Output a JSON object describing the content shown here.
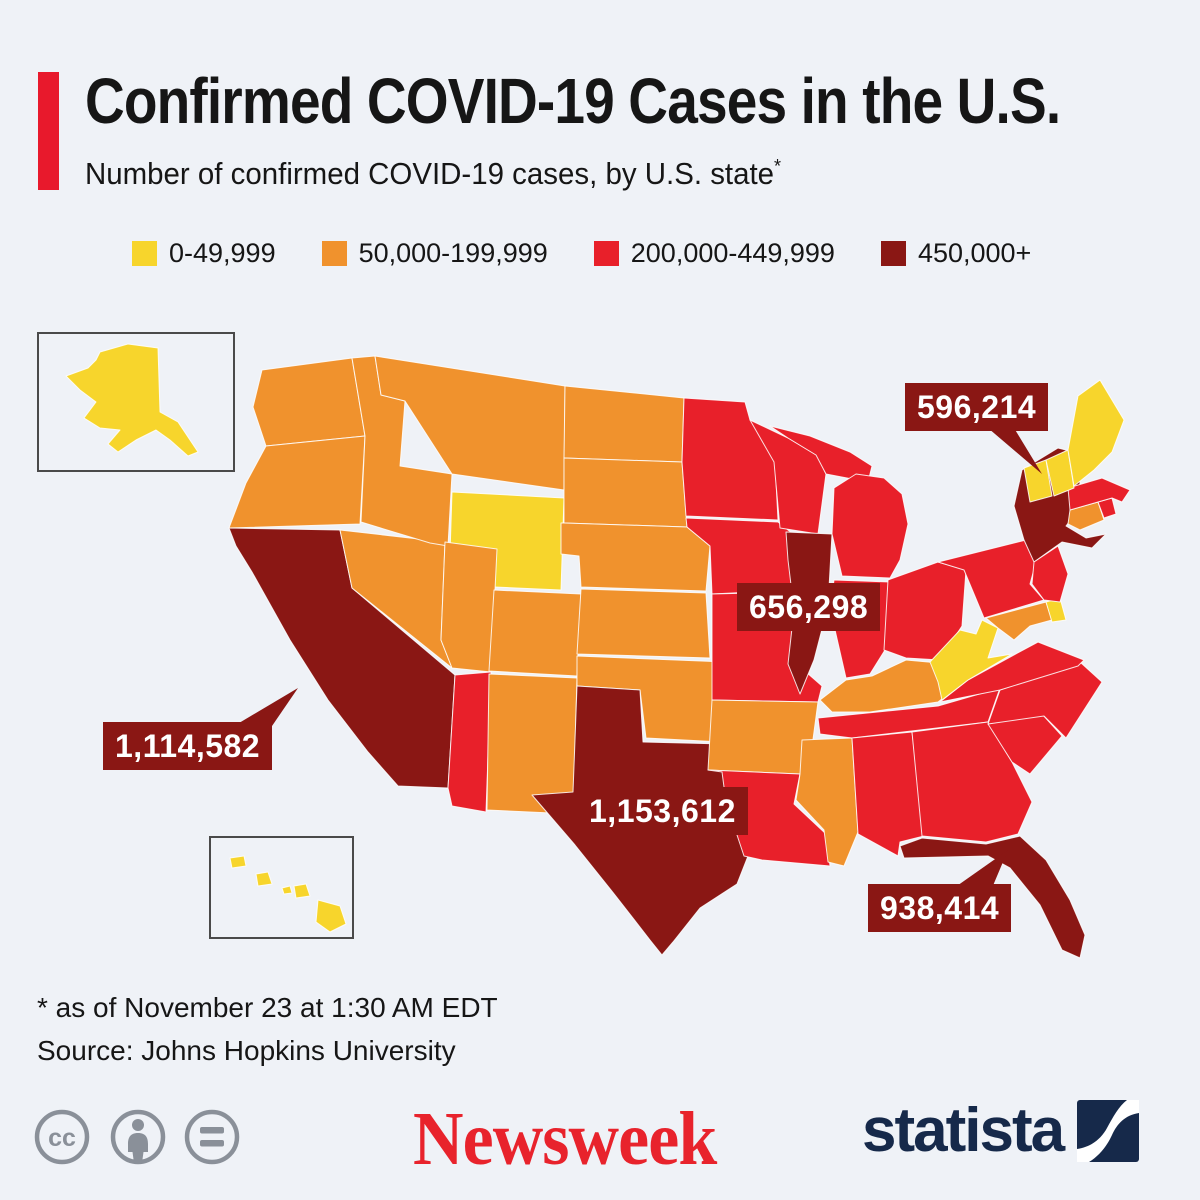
{
  "page": {
    "background": "#EFF2F7"
  },
  "header": {
    "accent_color": "#E8192C",
    "title": "Confirmed COVID-19 Cases in the U.S.",
    "subtitle": "Number of confirmed COVID-19 cases, by U.S. state",
    "subtitle_note_marker": "*"
  },
  "legend": {
    "items": [
      {
        "label": "0-49,999",
        "color": "#F7D52C"
      },
      {
        "label": "50,000-199,999",
        "color": "#F0922D"
      },
      {
        "label": "200,000-449,999",
        "color": "#E8202A"
      },
      {
        "label": "450,000+",
        "color": "#8A1714"
      }
    ]
  },
  "map": {
    "stroke_color": "#FFFFFF",
    "inset_border_color": "#4A4A4A",
    "callout_color": "#8A1714",
    "callouts": [
      {
        "state": "NY",
        "value": "596,214"
      },
      {
        "state": "IL",
        "value": "656,298"
      },
      {
        "state": "CA",
        "value": "1,114,582"
      },
      {
        "state": "TX",
        "value": "1,153,612"
      },
      {
        "state": "FL",
        "value": "938,414"
      }
    ]
  },
  "footer": {
    "footnote": "* as of November 23 at 1:30 AM EDT",
    "source": "Source: Johns Hopkins University"
  },
  "branding": {
    "license_icons": [
      "cc-icon",
      "attribution-icon",
      "equal-icon"
    ],
    "license_color": "#8A9099",
    "newsweek_logo_text": "Newsweek",
    "newsweek_color": "#E8232C",
    "statista_logo_text": "statista",
    "statista_color": "#16294A"
  },
  "chart_data": {
    "type": "choropleth",
    "title": "Confirmed COVID-19 Cases in the U.S.",
    "subtitle": "Number of confirmed COVID-19 cases, by U.S. state*",
    "unit": "confirmed COVID-19 cases",
    "as_of": "November 23 at 1:30 AM EDT",
    "source": "Johns Hopkins University",
    "buckets": [
      "0-49,999",
      "50,000-199,999",
      "200,000-449,999",
      "450,000+"
    ],
    "labeled_values": {
      "New York": 596214,
      "Illinois": 656298,
      "California": 1114582,
      "Texas": 1153612,
      "Florida": 938414
    },
    "states": [
      {
        "id": "WA",
        "name": "Washington",
        "category": "50,000-199,999"
      },
      {
        "id": "OR",
        "name": "Oregon",
        "category": "50,000-199,999"
      },
      {
        "id": "CA",
        "name": "California",
        "category": "450,000+"
      },
      {
        "id": "NV",
        "name": "Nevada",
        "category": "50,000-199,999"
      },
      {
        "id": "ID",
        "name": "Idaho",
        "category": "50,000-199,999"
      },
      {
        "id": "MT",
        "name": "Montana",
        "category": "50,000-199,999"
      },
      {
        "id": "WY",
        "name": "Wyoming",
        "category": "0-49,999"
      },
      {
        "id": "UT",
        "name": "Utah",
        "category": "50,000-199,999"
      },
      {
        "id": "CO",
        "name": "Colorado",
        "category": "50,000-199,999"
      },
      {
        "id": "AZ",
        "name": "Arizona",
        "category": "200,000-449,999"
      },
      {
        "id": "NM",
        "name": "New Mexico",
        "category": "50,000-199,999"
      },
      {
        "id": "ND",
        "name": "North Dakota",
        "category": "50,000-199,999"
      },
      {
        "id": "SD",
        "name": "South Dakota",
        "category": "50,000-199,999"
      },
      {
        "id": "NE",
        "name": "Nebraska",
        "category": "50,000-199,999"
      },
      {
        "id": "KS",
        "name": "Kansas",
        "category": "50,000-199,999"
      },
      {
        "id": "OK",
        "name": "Oklahoma",
        "category": "50,000-199,999"
      },
      {
        "id": "TX",
        "name": "Texas",
        "category": "450,000+"
      },
      {
        "id": "MN",
        "name": "Minnesota",
        "category": "200,000-449,999"
      },
      {
        "id": "IA",
        "name": "Iowa",
        "category": "200,000-449,999"
      },
      {
        "id": "MO",
        "name": "Missouri",
        "category": "200,000-449,999"
      },
      {
        "id": "AR",
        "name": "Arkansas",
        "category": "50,000-199,999"
      },
      {
        "id": "LA",
        "name": "Louisiana",
        "category": "200,000-449,999"
      },
      {
        "id": "WI",
        "name": "Wisconsin",
        "category": "200,000-449,999"
      },
      {
        "id": "IL",
        "name": "Illinois",
        "category": "450,000+"
      },
      {
        "id": "MI",
        "name": "Michigan",
        "category": "200,000-449,999"
      },
      {
        "id": "IN",
        "name": "Indiana",
        "category": "200,000-449,999"
      },
      {
        "id": "OH",
        "name": "Ohio",
        "category": "200,000-449,999"
      },
      {
        "id": "KY",
        "name": "Kentucky",
        "category": "50,000-199,999"
      },
      {
        "id": "TN",
        "name": "Tennessee",
        "category": "200,000-449,999"
      },
      {
        "id": "MS",
        "name": "Mississippi",
        "category": "50,000-199,999"
      },
      {
        "id": "AL",
        "name": "Alabama",
        "category": "200,000-449,999"
      },
      {
        "id": "GA",
        "name": "Georgia",
        "category": "200,000-449,999"
      },
      {
        "id": "FL",
        "name": "Florida",
        "category": "450,000+"
      },
      {
        "id": "SC",
        "name": "South Carolina",
        "category": "200,000-449,999"
      },
      {
        "id": "NC",
        "name": "North Carolina",
        "category": "200,000-449,999"
      },
      {
        "id": "VA",
        "name": "Virginia",
        "category": "200,000-449,999"
      },
      {
        "id": "WV",
        "name": "West Virginia",
        "category": "0-49,999"
      },
      {
        "id": "MD",
        "name": "Maryland",
        "category": "50,000-199,999"
      },
      {
        "id": "DE",
        "name": "Delaware",
        "category": "0-49,999"
      },
      {
        "id": "PA",
        "name": "Pennsylvania",
        "category": "200,000-449,999"
      },
      {
        "id": "NY",
        "name": "New York",
        "category": "450,000+"
      },
      {
        "id": "NJ",
        "name": "New Jersey",
        "category": "200,000-449,999"
      },
      {
        "id": "CT",
        "name": "Connecticut",
        "category": "50,000-199,999"
      },
      {
        "id": "RI",
        "name": "Rhode Island",
        "category": "200,000-449,999"
      },
      {
        "id": "MA",
        "name": "Massachusetts",
        "category": "200,000-449,999"
      },
      {
        "id": "VT",
        "name": "Vermont",
        "category": "0-49,999"
      },
      {
        "id": "NH",
        "name": "New Hampshire",
        "category": "0-49,999"
      },
      {
        "id": "ME",
        "name": "Maine",
        "category": "0-49,999"
      },
      {
        "id": "AK",
        "name": "Alaska",
        "category": "0-49,999"
      },
      {
        "id": "HI",
        "name": "Hawaii",
        "category": "0-49,999"
      }
    ]
  }
}
